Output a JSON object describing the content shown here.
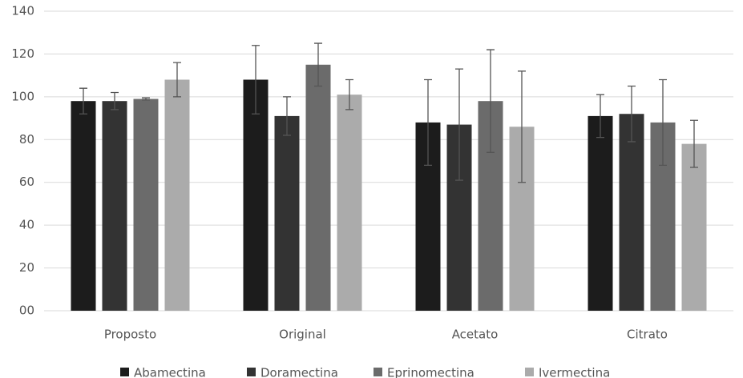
{
  "chart_data": {
    "type": "bar",
    "categories": [
      "Proposto",
      "Original",
      "Acetato",
      "Citrato"
    ],
    "series": [
      {
        "name": "Abamectina",
        "color": "#1c1c1c",
        "values": [
          98,
          108,
          88,
          91
        ],
        "errors": [
          6,
          16,
          20,
          10
        ]
      },
      {
        "name": "Doramectina",
        "color": "#333333",
        "values": [
          98,
          91,
          87,
          92
        ],
        "errors": [
          4,
          9,
          26,
          13
        ]
      },
      {
        "name": "Eprinomectina",
        "color": "#6b6b6b",
        "values": [
          99,
          115,
          98,
          88
        ],
        "errors": [
          0.5,
          10,
          24,
          20
        ]
      },
      {
        "name": "Ivermectina",
        "color": "#ababab",
        "values": [
          108,
          101,
          86,
          78
        ],
        "errors": [
          8,
          7,
          26,
          11
        ]
      }
    ],
    "ylim": [
      0,
      140
    ],
    "yticks": [
      {
        "value": 0,
        "label": "00"
      },
      20,
      40,
      60,
      80,
      100,
      120,
      140
    ],
    "grid": true,
    "legend": "bottom"
  }
}
